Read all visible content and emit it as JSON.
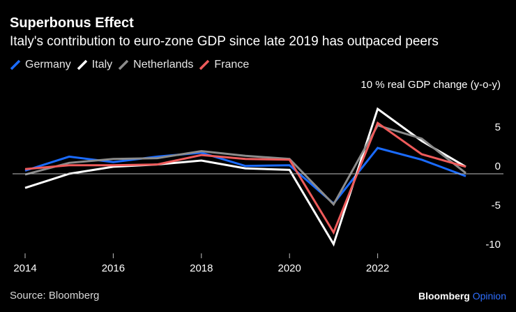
{
  "header": {
    "title": "Superbonus Effect",
    "subtitle": "Italy's contribution to euro-zone GDP since late 2019 has outpaced peers"
  },
  "legend": [
    {
      "label": "Germany",
      "color": "#1a6bff"
    },
    {
      "label": "Italy",
      "color": "#ffffff"
    },
    {
      "label": "Netherlands",
      "color": "#8c8c8c"
    },
    {
      "label": "France",
      "color": "#ef5b5b"
    }
  ],
  "footer": {
    "source": "Source: Bloomberg",
    "brand_main": "Bloomberg",
    "brand_sub": "Opinion"
  },
  "chart_data": {
    "type": "line",
    "title": "Superbonus Effect",
    "subtitle": "Italy's contribution to euro-zone GDP since late 2019 has outpaced peers",
    "xlabel": "",
    "ylabel": "% real GDP change (y-o-y)",
    "x": [
      2014,
      2015,
      2016,
      2017,
      2018,
      2019,
      2020,
      2021,
      2022,
      2023,
      2024
    ],
    "xticks": [
      2014,
      2016,
      2018,
      2020,
      2022
    ],
    "xtick_labels": [
      "2014",
      "2016",
      "2018",
      "2020",
      "2022"
    ],
    "ylim": [
      -10,
      10
    ],
    "yticks": [
      10,
      5,
      0,
      -5,
      -10
    ],
    "ytick_labels": [
      "10",
      "5",
      "0",
      "-5",
      "-10"
    ],
    "grid": false,
    "legend_position": "top-left",
    "series": [
      {
        "name": "Germany",
        "color": "#1a6bff",
        "values": [
          0.4,
          2.2,
          1.5,
          2.2,
          2.7,
          1.0,
          1.1,
          -3.8,
          3.3,
          1.8,
          -0.3
        ]
      },
      {
        "name": "Italy",
        "color": "#ffffff",
        "values": [
          -1.8,
          0.0,
          0.9,
          1.2,
          1.7,
          0.7,
          0.5,
          -9.0,
          8.3,
          4.2,
          0.9
        ]
      },
      {
        "name": "Netherlands",
        "color": "#8c8c8c",
        "values": [
          -0.1,
          1.4,
          1.9,
          2.0,
          2.9,
          2.3,
          1.9,
          -3.9,
          6.2,
          4.5,
          0.1
        ]
      },
      {
        "name": "France",
        "color": "#ef5b5b",
        "values": [
          0.6,
          1.1,
          1.1,
          1.2,
          2.4,
          1.9,
          1.8,
          -7.5,
          6.5,
          2.5,
          0.9
        ]
      }
    ]
  }
}
